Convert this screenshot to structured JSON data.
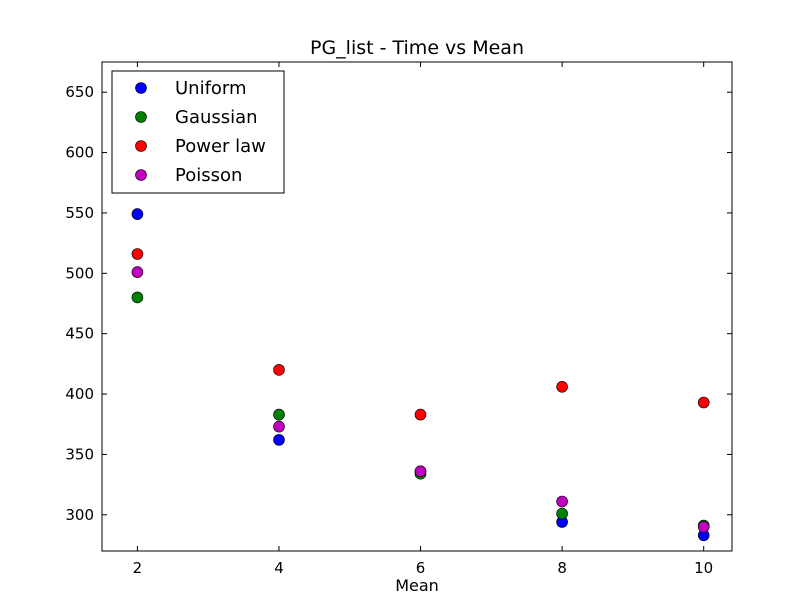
{
  "chart_data": {
    "type": "scatter",
    "title": "PG_list - Time vs Mean",
    "xlabel": "Mean",
    "ylabel": "",
    "xlim": [
      1.5,
      10.4
    ],
    "ylim": [
      270,
      675
    ],
    "xticks": [
      2,
      4,
      6,
      8,
      10
    ],
    "yticks": [
      300,
      350,
      400,
      450,
      500,
      550,
      600,
      650
    ],
    "grid": false,
    "legend_position": "top-left",
    "series": [
      {
        "name": "Uniform",
        "color": "#0000ff",
        "x": [
          2,
          4,
          6,
          8,
          10
        ],
        "y": [
          549,
          362,
          336,
          294,
          283
        ]
      },
      {
        "name": "Gaussian",
        "color": "#008000",
        "x": [
          2,
          4,
          6,
          8,
          10
        ],
        "y": [
          480,
          383,
          334,
          301,
          291
        ]
      },
      {
        "name": "Power law",
        "color": "#ff0000",
        "x": [
          2,
          4,
          6,
          8,
          10
        ],
        "y": [
          516,
          420,
          383,
          406,
          393
        ]
      },
      {
        "name": "Poisson",
        "color": "#bf00bf",
        "x": [
          2,
          4,
          6,
          8,
          10
        ],
        "y": [
          501,
          373,
          336,
          311,
          290
        ]
      }
    ]
  }
}
